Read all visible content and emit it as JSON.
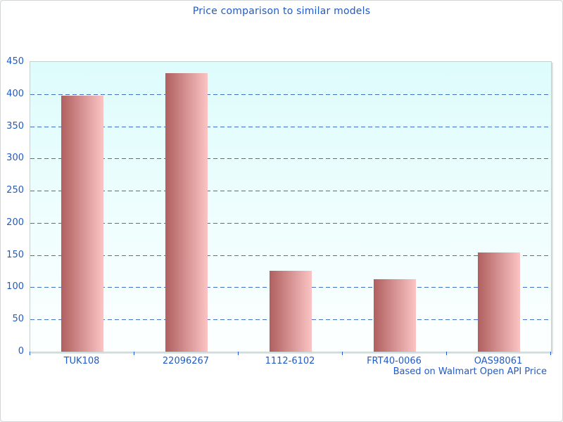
{
  "window": {
    "background": "#ffffff",
    "border_color": "#d2d6d6"
  },
  "chart_data": {
    "type": "bar",
    "title": "Price comparison to similar models",
    "footer": "Based on Walmart Open API Price",
    "categories": [
      "TUK108",
      "22096267",
      "1112-6102",
      "FRT40-0066",
      "OAS98061"
    ],
    "values": [
      398,
      433,
      126,
      113,
      154
    ],
    "xlabel": "",
    "ylabel": "",
    "ylim": [
      0,
      450
    ],
    "ytick_step": 50,
    "grid": "horizontal-dashed",
    "legend_position": "none",
    "colors": {
      "text_blue": "#1f5bc8",
      "gridline_blue": "#3d6ec9",
      "bar_gradient_left": "#b05f5f",
      "bar_gradient_right": "#fbc4c4",
      "plot_bg_top": "#defcfc",
      "plot_bg_bottom": "#fdffff",
      "axis_gray": "#c6cfcf"
    }
  }
}
